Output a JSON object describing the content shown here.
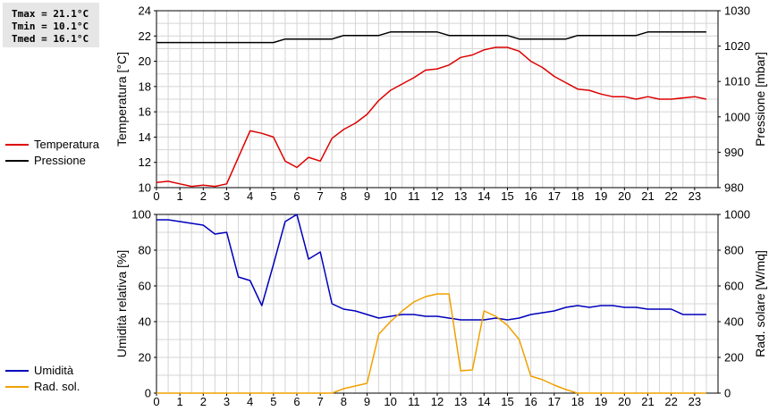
{
  "stats": {
    "tmax": "Tmax = 21.1°C",
    "tmin": "Tmin = 10.1°C",
    "tmed": "Tmed = 16.1°C"
  },
  "colors": {
    "temperature": "#dd0000",
    "pressure": "#000000",
    "humidity": "#0000bb",
    "solar": "#f0a000",
    "grid": "#d4d4d4"
  },
  "chart_data": [
    {
      "type": "line",
      "x_ticks": [
        0,
        1,
        2,
        3,
        4,
        5,
        6,
        7,
        8,
        9,
        10,
        11,
        12,
        13,
        14,
        15,
        16,
        17,
        18,
        19,
        20,
        21,
        22,
        23
      ],
      "xlim": [
        0,
        24
      ],
      "ylabel": "Temperatura [°C]",
      "ylim": [
        10,
        24
      ],
      "y_ticks": [
        10,
        12,
        14,
        16,
        18,
        20,
        22,
        24
      ],
      "y2label": "Pressione [mbar]",
      "y2lim": [
        980,
        1030
      ],
      "y2_ticks": [
        980,
        990,
        1000,
        1010,
        1020,
        1030
      ],
      "grid": true,
      "legend_position": "left",
      "series": [
        {
          "name": "Temperatura",
          "axis": "left",
          "color_key": "temperature",
          "x": [
            0,
            0.5,
            1,
            1.5,
            2,
            2.5,
            3,
            3.5,
            4,
            4.5,
            5,
            5.5,
            6,
            6.5,
            7,
            7.5,
            8,
            8.5,
            9,
            9.5,
            10,
            10.5,
            11,
            11.5,
            12,
            12.5,
            13,
            13.5,
            14,
            14.5,
            15,
            15.5,
            16,
            16.5,
            17,
            17.5,
            18,
            18.5,
            19,
            19.5,
            20,
            20.5,
            21,
            21.5,
            22,
            22.5,
            23,
            23.5
          ],
          "values": [
            10.4,
            10.5,
            10.3,
            10.1,
            10.2,
            10.1,
            10.3,
            12.4,
            14.5,
            14.3,
            14.0,
            12.1,
            11.6,
            12.4,
            12.1,
            13.9,
            14.6,
            15.1,
            15.8,
            16.9,
            17.7,
            18.2,
            18.7,
            19.3,
            19.4,
            19.7,
            20.3,
            20.5,
            20.9,
            21.1,
            21.1,
            20.8,
            20.0,
            19.5,
            18.8,
            18.3,
            17.8,
            17.7,
            17.4,
            17.2,
            17.2,
            17.0,
            17.2,
            17.0,
            17.0,
            17.1,
            17.2,
            17.0
          ]
        },
        {
          "name": "Pressione",
          "axis": "right",
          "color_key": "pressure",
          "x": [
            0,
            1,
            2,
            3,
            4,
            5,
            5.5,
            6,
            7,
            7.5,
            8,
            9,
            9.5,
            10,
            11,
            12,
            12.5,
            13,
            14,
            15,
            15.5,
            16,
            17,
            17.5,
            18,
            19,
            20,
            20.5,
            21,
            22,
            23,
            23.5
          ],
          "values": [
            1021,
            1021,
            1021,
            1021,
            1021,
            1021,
            1022,
            1022,
            1022,
            1022,
            1023,
            1023,
            1023,
            1024,
            1024,
            1024,
            1023,
            1023,
            1023,
            1023,
            1022,
            1022,
            1022,
            1022,
            1023,
            1023,
            1023,
            1023,
            1024,
            1024,
            1024,
            1024
          ]
        }
      ]
    },
    {
      "type": "line",
      "x_ticks": [
        0,
        1,
        2,
        3,
        4,
        5,
        6,
        7,
        8,
        9,
        10,
        11,
        12,
        13,
        14,
        15,
        16,
        17,
        18,
        19,
        20,
        21,
        22,
        23
      ],
      "xlim": [
        0,
        24
      ],
      "ylabel": "Umidità relativa [%]",
      "ylim": [
        0,
        100
      ],
      "y_ticks": [
        0,
        20,
        40,
        60,
        80,
        100
      ],
      "y2label": "Rad. solare [W/mq]",
      "y2lim": [
        0,
        1000
      ],
      "y2_ticks": [
        0,
        200,
        400,
        600,
        800,
        1000
      ],
      "grid": true,
      "legend_position": "left",
      "series": [
        {
          "name": "Umidità",
          "axis": "left",
          "color_key": "humidity",
          "x": [
            0,
            0.5,
            1,
            1.5,
            2,
            2.5,
            3,
            3.5,
            4,
            4.5,
            5,
            5.5,
            6,
            6.5,
            7,
            7.5,
            8,
            8.5,
            9,
            9.5,
            10,
            10.5,
            11,
            11.5,
            12,
            12.5,
            13,
            13.5,
            14,
            14.5,
            15,
            15.5,
            16,
            16.5,
            17,
            17.5,
            18,
            18.5,
            19,
            19.5,
            20,
            20.5,
            21,
            21.5,
            22,
            22.5,
            23,
            23.5
          ],
          "values": [
            97,
            97,
            96,
            95,
            94,
            89,
            90,
            65,
            63,
            49,
            72,
            96,
            100,
            75,
            79,
            50,
            47,
            46,
            44,
            42,
            43,
            44,
            44,
            43,
            43,
            42,
            41,
            41,
            41,
            42,
            41,
            42,
            44,
            45,
            46,
            48,
            49,
            48,
            49,
            49,
            48,
            48,
            47,
            47,
            47,
            44,
            44,
            44
          ]
        },
        {
          "name": "Rad. sol.",
          "axis": "right",
          "color_key": "solar",
          "x": [
            0,
            0.5,
            1,
            1.5,
            2,
            2.5,
            3,
            3.5,
            4,
            4.5,
            5,
            5.5,
            6,
            6.5,
            7,
            7.5,
            8,
            8.5,
            9,
            9.5,
            10,
            10.5,
            11,
            11.5,
            12,
            12.5,
            13,
            13.5,
            14,
            14.5,
            15,
            15.5,
            16,
            16.5,
            17,
            17.5,
            18,
            18.5,
            19,
            19.5,
            20,
            20.5,
            21,
            21.5,
            22,
            22.5,
            23,
            23.5
          ],
          "values": [
            0,
            0,
            0,
            0,
            0,
            0,
            0,
            0,
            0,
            0,
            0,
            0,
            0,
            0,
            0,
            0,
            25,
            40,
            55,
            330,
            400,
            460,
            510,
            540,
            555,
            555,
            125,
            130,
            460,
            430,
            380,
            300,
            95,
            75,
            45,
            20,
            0,
            0,
            0,
            0,
            0,
            0,
            0,
            0,
            0,
            0,
            0,
            0
          ]
        }
      ]
    }
  ]
}
